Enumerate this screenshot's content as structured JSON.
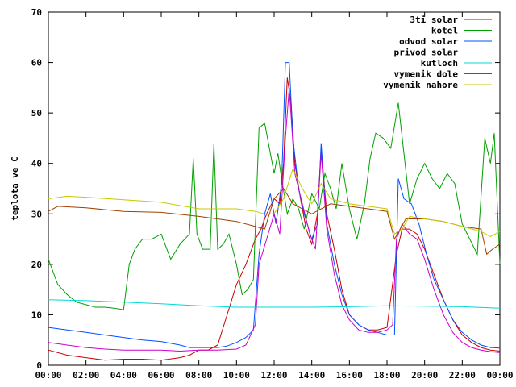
{
  "chart_data": {
    "type": "line",
    "title": "",
    "xlabel": "",
    "ylabel": "teplota ve C",
    "xlim_hours": [
      0,
      24
    ],
    "ylim": [
      0,
      70
    ],
    "grid": false,
    "legend_position": "top-right",
    "x_ticks": [
      {
        "v": 0,
        "label": "00:00"
      },
      {
        "v": 2,
        "label": "02:00"
      },
      {
        "v": 4,
        "label": "04:00"
      },
      {
        "v": 6,
        "label": "06:00"
      },
      {
        "v": 8,
        "label": "08:00"
      },
      {
        "v": 10,
        "label": "10:00"
      },
      {
        "v": 12,
        "label": "12:00"
      },
      {
        "v": 14,
        "label": "14:00"
      },
      {
        "v": 16,
        "label": "16:00"
      },
      {
        "v": 18,
        "label": "18:00"
      },
      {
        "v": 20,
        "label": "20:00"
      },
      {
        "v": 22,
        "label": "22:00"
      },
      {
        "v": 24,
        "label": "00:00"
      }
    ],
    "y_ticks": [
      {
        "v": 0,
        "label": "0"
      },
      {
        "v": 10,
        "label": "10"
      },
      {
        "v": 20,
        "label": "20"
      },
      {
        "v": 30,
        "label": "30"
      },
      {
        "v": 40,
        "label": "40"
      },
      {
        "v": 50,
        "label": "50"
      },
      {
        "v": 60,
        "label": "60"
      },
      {
        "v": 70,
        "label": "70"
      }
    ],
    "series": [
      {
        "name": "3ti solar",
        "color": "#cc0000",
        "points": [
          [
            0,
            3
          ],
          [
            1,
            2
          ],
          [
            2,
            1.5
          ],
          [
            3,
            1
          ],
          [
            4,
            1.2
          ],
          [
            5,
            1.2
          ],
          [
            6,
            1
          ],
          [
            7,
            1.5
          ],
          [
            7.5,
            2
          ],
          [
            8,
            3
          ],
          [
            8.5,
            3
          ],
          [
            9,
            4
          ],
          [
            9.5,
            10
          ],
          [
            10,
            16
          ],
          [
            10.5,
            20
          ],
          [
            11,
            25
          ],
          [
            11.3,
            27
          ],
          [
            11.6,
            30
          ],
          [
            12,
            33
          ],
          [
            12.3,
            32
          ],
          [
            12.5,
            40
          ],
          [
            12.7,
            57
          ],
          [
            12.9,
            52
          ],
          [
            13.1,
            40
          ],
          [
            13.4,
            33
          ],
          [
            13.7,
            27
          ],
          [
            14,
            24
          ],
          [
            14.3,
            30
          ],
          [
            14.5,
            43
          ],
          [
            14.8,
            30
          ],
          [
            15.2,
            23
          ],
          [
            15.6,
            15
          ],
          [
            16,
            10
          ],
          [
            16.5,
            8
          ],
          [
            17,
            7
          ],
          [
            17.5,
            7
          ],
          [
            18,
            7.5
          ],
          [
            18.5,
            22
          ],
          [
            18.8,
            27
          ],
          [
            19.2,
            27
          ],
          [
            19.6,
            26
          ],
          [
            20,
            23
          ],
          [
            20.5,
            18
          ],
          [
            21,
            13
          ],
          [
            21.5,
            9
          ],
          [
            22,
            6
          ],
          [
            22.5,
            4.5
          ],
          [
            23,
            3.5
          ],
          [
            23.5,
            3
          ],
          [
            24,
            2.8
          ]
        ]
      },
      {
        "name": "kotel",
        "color": "#00a000",
        "points": [
          [
            0,
            21
          ],
          [
            0.5,
            16
          ],
          [
            1,
            14
          ],
          [
            1.5,
            12.5
          ],
          [
            2,
            12
          ],
          [
            2.5,
            11.5
          ],
          [
            3,
            11.5
          ],
          [
            3.5,
            11.3
          ],
          [
            4,
            11
          ],
          [
            4.3,
            20
          ],
          [
            4.6,
            23
          ],
          [
            5,
            25
          ],
          [
            5.5,
            25
          ],
          [
            6,
            26
          ],
          [
            6.5,
            21
          ],
          [
            7,
            24
          ],
          [
            7.5,
            26
          ],
          [
            7.7,
            41
          ],
          [
            7.9,
            26
          ],
          [
            8.2,
            23
          ],
          [
            8.6,
            23
          ],
          [
            8.8,
            44
          ],
          [
            9,
            23
          ],
          [
            9.3,
            24
          ],
          [
            9.6,
            26
          ],
          [
            10,
            20
          ],
          [
            10.3,
            14
          ],
          [
            10.6,
            15
          ],
          [
            10.9,
            17
          ],
          [
            11.2,
            47
          ],
          [
            11.5,
            48
          ],
          [
            11.8,
            42
          ],
          [
            12,
            38
          ],
          [
            12.2,
            42
          ],
          [
            12.4,
            37
          ],
          [
            12.7,
            30
          ],
          [
            13,
            33
          ],
          [
            13.3,
            31
          ],
          [
            13.6,
            27
          ],
          [
            14,
            34
          ],
          [
            14.4,
            31
          ],
          [
            14.7,
            38
          ],
          [
            15,
            35
          ],
          [
            15.3,
            31
          ],
          [
            15.6,
            40
          ],
          [
            16,
            31
          ],
          [
            16.4,
            25
          ],
          [
            16.8,
            32
          ],
          [
            17.1,
            41
          ],
          [
            17.4,
            46
          ],
          [
            17.8,
            45
          ],
          [
            18.2,
            43
          ],
          [
            18.6,
            52
          ],
          [
            18.9,
            42
          ],
          [
            19.2,
            32
          ],
          [
            19.6,
            37
          ],
          [
            20,
            40
          ],
          [
            20.4,
            37
          ],
          [
            20.8,
            35
          ],
          [
            21.2,
            38
          ],
          [
            21.6,
            36
          ],
          [
            22,
            28
          ],
          [
            22.4,
            25
          ],
          [
            22.8,
            22
          ],
          [
            23.2,
            45
          ],
          [
            23.5,
            40
          ],
          [
            23.7,
            46
          ],
          [
            24,
            20
          ]
        ]
      },
      {
        "name": "odvod solar",
        "color": "#0050ff",
        "points": [
          [
            0,
            7.5
          ],
          [
            1,
            7
          ],
          [
            2,
            6.5
          ],
          [
            3,
            6
          ],
          [
            4,
            5.5
          ],
          [
            5,
            5
          ],
          [
            6,
            4.7
          ],
          [
            7,
            4
          ],
          [
            7.5,
            3.5
          ],
          [
            8,
            3.5
          ],
          [
            8.5,
            3.5
          ],
          [
            9,
            3.5
          ],
          [
            9.5,
            3.8
          ],
          [
            10,
            4.5
          ],
          [
            10.5,
            5.5
          ],
          [
            10.9,
            7
          ],
          [
            11.2,
            22
          ],
          [
            11.5,
            30
          ],
          [
            11.8,
            34
          ],
          [
            12.1,
            28
          ],
          [
            12.4,
            36
          ],
          [
            12.6,
            60
          ],
          [
            12.8,
            60
          ],
          [
            13,
            45
          ],
          [
            13.3,
            35
          ],
          [
            13.6,
            30
          ],
          [
            14,
            25
          ],
          [
            14.3,
            28
          ],
          [
            14.5,
            44
          ],
          [
            14.8,
            28
          ],
          [
            15.2,
            20
          ],
          [
            15.6,
            14
          ],
          [
            16,
            10
          ],
          [
            16.5,
            8
          ],
          [
            17,
            7
          ],
          [
            17.5,
            6.5
          ],
          [
            18,
            6
          ],
          [
            18.4,
            6
          ],
          [
            18.6,
            37
          ],
          [
            18.9,
            33
          ],
          [
            19.3,
            32
          ],
          [
            19.7,
            28
          ],
          [
            20.1,
            22
          ],
          [
            20.5,
            17
          ],
          [
            21,
            13
          ],
          [
            21.5,
            9
          ],
          [
            22,
            6.5
          ],
          [
            22.5,
            5
          ],
          [
            23,
            4
          ],
          [
            23.5,
            3.5
          ],
          [
            24,
            3.4
          ]
        ]
      },
      {
        "name": "privod solar",
        "color": "#cc00cc",
        "points": [
          [
            0,
            4.5
          ],
          [
            1,
            4
          ],
          [
            2,
            3.5
          ],
          [
            3,
            3.2
          ],
          [
            4,
            3
          ],
          [
            5,
            3
          ],
          [
            6,
            3
          ],
          [
            7,
            2.8
          ],
          [
            8,
            3
          ],
          [
            9,
            3
          ],
          [
            10,
            3.2
          ],
          [
            10.5,
            4
          ],
          [
            11,
            8
          ],
          [
            11.2,
            20
          ],
          [
            11.6,
            25
          ],
          [
            12,
            30
          ],
          [
            12.3,
            26
          ],
          [
            12.6,
            45
          ],
          [
            12.8,
            55
          ],
          [
            13.1,
            38
          ],
          [
            13.5,
            32
          ],
          [
            13.9,
            26
          ],
          [
            14.2,
            23
          ],
          [
            14.5,
            42
          ],
          [
            14.8,
            27
          ],
          [
            15.2,
            18
          ],
          [
            15.6,
            12
          ],
          [
            16,
            9
          ],
          [
            16.5,
            7
          ],
          [
            17,
            6.5
          ],
          [
            17.5,
            6.5
          ],
          [
            18,
            7
          ],
          [
            18.3,
            8
          ],
          [
            18.5,
            25
          ],
          [
            18.8,
            28
          ],
          [
            19.2,
            26
          ],
          [
            19.6,
            25
          ],
          [
            20,
            21
          ],
          [
            20.5,
            15
          ],
          [
            21,
            10
          ],
          [
            21.5,
            6.5
          ],
          [
            22,
            4.5
          ],
          [
            22.5,
            3.5
          ],
          [
            23,
            3
          ],
          [
            23.5,
            2.7
          ],
          [
            24,
            2.5
          ]
        ]
      },
      {
        "name": "kutloch",
        "color": "#00d8d8",
        "points": [
          [
            0,
            13
          ],
          [
            2,
            12.8
          ],
          [
            4,
            12.5
          ],
          [
            6,
            12.2
          ],
          [
            8,
            11.8
          ],
          [
            10,
            11.5
          ],
          [
            12,
            11.5
          ],
          [
            14,
            11.5
          ],
          [
            16,
            11.6
          ],
          [
            18,
            11.8
          ],
          [
            20,
            11.7
          ],
          [
            22,
            11.6
          ],
          [
            24,
            11.3
          ]
        ]
      },
      {
        "name": "vymenik dole",
        "color": "#a04000",
        "points": [
          [
            0,
            30.5
          ],
          [
            0.5,
            31.5
          ],
          [
            2,
            31.2
          ],
          [
            4,
            30.5
          ],
          [
            6,
            30.3
          ],
          [
            8,
            29.5
          ],
          [
            10,
            28.5
          ],
          [
            11,
            27.5
          ],
          [
            11.5,
            27
          ],
          [
            12,
            33
          ],
          [
            12.5,
            35
          ],
          [
            13,
            32
          ],
          [
            14,
            30
          ],
          [
            15,
            32
          ],
          [
            16,
            31.5
          ],
          [
            17,
            31
          ],
          [
            18,
            30.5
          ],
          [
            18.4,
            25
          ],
          [
            18.7,
            27
          ],
          [
            19,
            29
          ],
          [
            20,
            29
          ],
          [
            21,
            28.5
          ],
          [
            22,
            27.5
          ],
          [
            23,
            27
          ],
          [
            23.3,
            22
          ],
          [
            23.6,
            23
          ],
          [
            24,
            24
          ]
        ]
      },
      {
        "name": "vymenik nahore",
        "color": "#c8c800",
        "points": [
          [
            0,
            33
          ],
          [
            1,
            33.5
          ],
          [
            2,
            33.3
          ],
          [
            4,
            32.8
          ],
          [
            6,
            32.3
          ],
          [
            8,
            31
          ],
          [
            10,
            31
          ],
          [
            11,
            30.5
          ],
          [
            11.5,
            30
          ],
          [
            12,
            30
          ],
          [
            12.5,
            33
          ],
          [
            13,
            39
          ],
          [
            13.5,
            35
          ],
          [
            14,
            32
          ],
          [
            14.5,
            36
          ],
          [
            15,
            33
          ],
          [
            16,
            32
          ],
          [
            17,
            31.5
          ],
          [
            18,
            31
          ],
          [
            18.4,
            26
          ],
          [
            18.8,
            27
          ],
          [
            19.2,
            29.5
          ],
          [
            20,
            29
          ],
          [
            21,
            28.5
          ],
          [
            22,
            27.5
          ],
          [
            23,
            26.5
          ],
          [
            23.5,
            25.5
          ],
          [
            24,
            26.5
          ]
        ]
      }
    ]
  }
}
